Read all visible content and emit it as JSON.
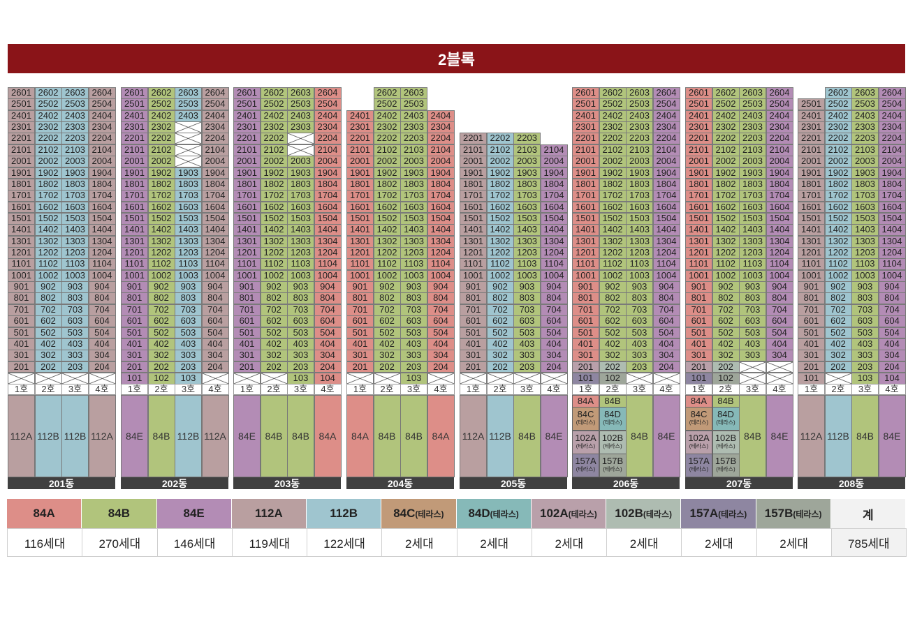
{
  "title": "2블록",
  "colors": {
    "84A": "#dd8e88",
    "84B": "#b1c47c",
    "84E": "#b38cb5",
    "112A": "#b99fa0",
    "112B": "#9fc5cf",
    "84C": "#c19a78",
    "84D": "#86b9b8",
    "102A": "#b9a0aa",
    "102B": "#aebcb1",
    "157A": "#8e86a1",
    "157B": "#9ea69a",
    "total": "#f2f2f2"
  },
  "ho_labels": [
    "1호",
    "2호",
    "3호",
    "4호"
  ],
  "buildings": [
    {
      "name": "201동",
      "top_floors": [
        26,
        26,
        26,
        26
      ],
      "low_floor": [
        2,
        2,
        2,
        2
      ],
      "types": [
        "112A",
        "112B",
        "112B",
        "112A"
      ]
    },
    {
      "name": "202동",
      "top_floors": [
        26,
        26,
        26,
        26
      ],
      "low_floor": [
        1,
        1,
        1,
        2
      ],
      "skips": {
        "3": [
          23,
          22,
          21,
          20
        ]
      },
      "types": [
        "84E",
        "84B",
        "112B",
        "112A"
      ]
    },
    {
      "name": "203동",
      "top_floors": [
        26,
        26,
        26,
        26
      ],
      "low_floor": [
        2,
        2,
        1,
        1
      ],
      "skips": {
        "3": [
          22,
          21
        ]
      },
      "types": [
        "84E",
        "84B",
        "84B",
        "84A"
      ]
    },
    {
      "name": "204동",
      "top_floors": [
        24,
        26,
        26,
        24
      ],
      "low_floor": [
        2,
        2,
        1,
        2
      ],
      "types": [
        "84A",
        "84B",
        "84B",
        "84A"
      ]
    },
    {
      "name": "205동",
      "top_floors": [
        22,
        22,
        22,
        21
      ],
      "low_floor": [
        2,
        2,
        2,
        2
      ],
      "types": [
        "112A",
        "112B",
        "84B",
        "84E"
      ]
    },
    {
      "name": "206동",
      "top_floors": [
        26,
        26,
        26,
        26
      ],
      "low_floor": [
        1,
        1,
        2,
        2
      ],
      "types": [
        "mix",
        "mix",
        "84B",
        "84E"
      ]
    },
    {
      "name": "207동",
      "top_floors": [
        26,
        26,
        26,
        26
      ],
      "low_floor": [
        1,
        1,
        3,
        3
      ],
      "types": [
        "mix",
        "mix",
        "84B",
        "84E"
      ]
    },
    {
      "name": "208동",
      "top_floors": [
        25,
        26,
        26,
        26
      ],
      "low_floor": [
        1,
        2,
        1,
        1
      ],
      "types": [
        "112A",
        "112B",
        "84B",
        "84E"
      ]
    }
  ],
  "terrace_stack": [
    {
      "left": "84A",
      "right": "84B"
    },
    {
      "left": "84C",
      "right": "84D",
      "note": "(테라스)"
    },
    {
      "left": "102A",
      "right": "102B",
      "note": "(테라스)"
    },
    {
      "left": "157A",
      "right": "157B",
      "note": "(테라스)"
    }
  ],
  "legend": [
    {
      "type": "84A",
      "note": "",
      "count": "116세대",
      "color": "#dd8e88"
    },
    {
      "type": "84B",
      "note": "",
      "count": "270세대",
      "color": "#b1c47c"
    },
    {
      "type": "84E",
      "note": "",
      "count": "146세대",
      "color": "#b38cb5"
    },
    {
      "type": "112A",
      "note": "",
      "count": "119세대",
      "color": "#b99fa0"
    },
    {
      "type": "112B",
      "note": "",
      "count": "122세대",
      "color": "#9fc5cf"
    },
    {
      "type": "84C",
      "note": "(테라스)",
      "count": "2세대",
      "color": "#c19a78"
    },
    {
      "type": "84D",
      "note": "(테라스)",
      "count": "2세대",
      "color": "#86b9b8"
    },
    {
      "type": "102A",
      "note": "(테라스)",
      "count": "2세대",
      "color": "#b9a0aa"
    },
    {
      "type": "102B",
      "note": "(테라스)",
      "count": "2세대",
      "color": "#aebcb1"
    },
    {
      "type": "157A",
      "note": "(테라스)",
      "count": "2세대",
      "color": "#8e86a1"
    },
    {
      "type": "157B",
      "note": "(테라스)",
      "count": "2세대",
      "color": "#9ea69a"
    },
    {
      "type": "계",
      "note": "",
      "count": "785세대",
      "color": "#f2f2f2"
    }
  ]
}
